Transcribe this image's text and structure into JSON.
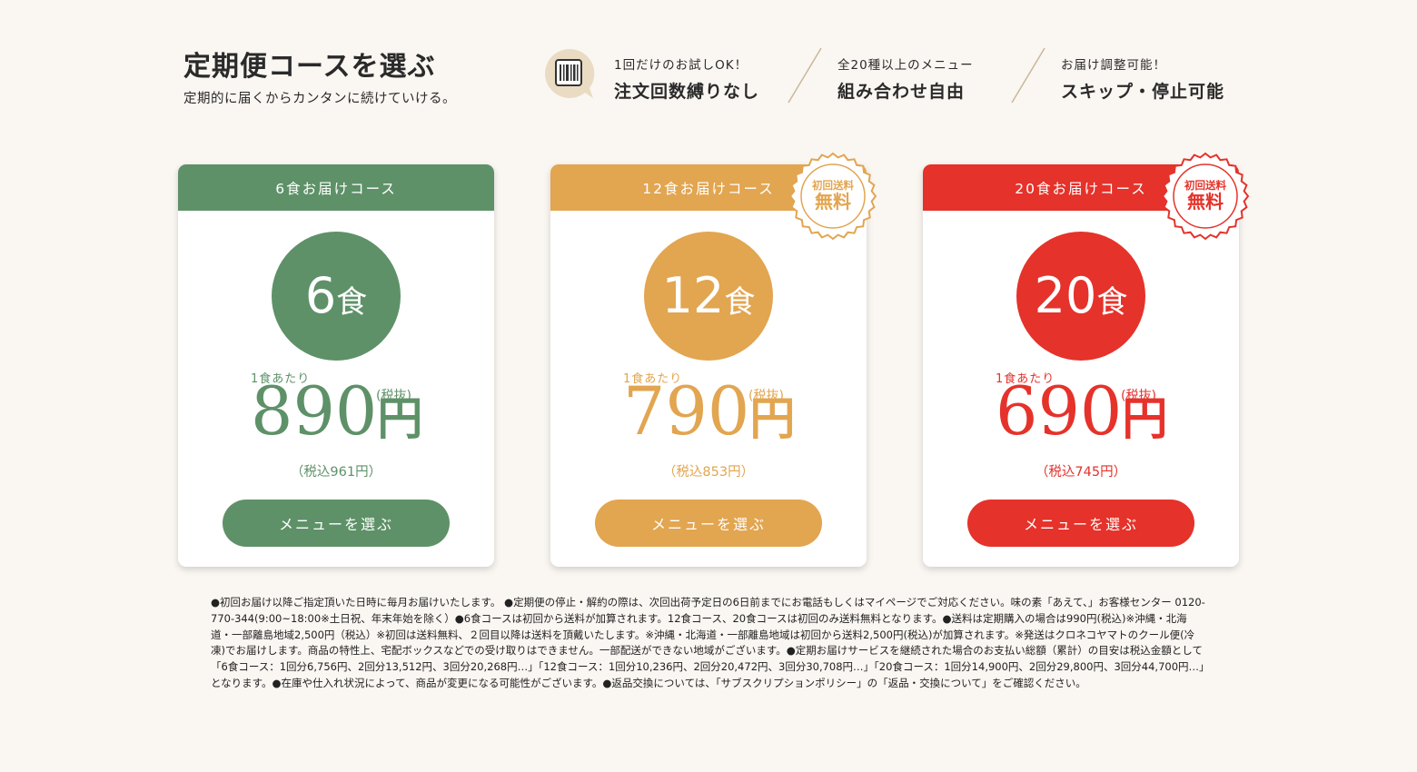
{
  "header": {
    "title": "定期便コースを選ぶ",
    "subtitle": "定期的に届くからカンタンに続けていける。"
  },
  "features": [
    {
      "small": "1回だけのお試しOK！",
      "big": "注文回数縛りなし"
    },
    {
      "small": "全20種以上のメニュー",
      "big": "組み合わせ自由"
    },
    {
      "small": "お届け調整可能！",
      "big": "スキップ・停止可能"
    }
  ],
  "courses": [
    {
      "header": "6食お届けコース",
      "count": "6",
      "unit": "食",
      "per_label": "1食あたり",
      "price": "890",
      "yen": "円",
      "tax_excluded": "(税抜)",
      "tax_included": "（税込961円）",
      "button": "メニューを選ぶ",
      "color": "#5e9168",
      "badge": null
    },
    {
      "header": "12食お届けコース",
      "count": "12",
      "unit": "食",
      "per_label": "1食あたり",
      "price": "790",
      "yen": "円",
      "tax_excluded": "(税抜)",
      "tax_included": "（税込853円）",
      "button": "メニューを選ぶ",
      "color": "#e2a550",
      "badge": {
        "small": "初回送料",
        "big": "無料"
      }
    },
    {
      "header": "20食お届けコース",
      "count": "20",
      "unit": "食",
      "per_label": "1食あたり",
      "price": "690",
      "yen": "円",
      "tax_excluded": "(税抜)",
      "tax_included": "（税込745円）",
      "button": "メニューを選ぶ",
      "color": "#e5322a",
      "badge": {
        "small": "初回送料",
        "big": "無料"
      }
    }
  ],
  "notes": "●初回お届け以降ご指定頂いた日時に毎月お届けいたします。 ●定期便の停止・解約の際は、次回出荷予定日の6日前までにお電話もしくはマイページでご対応ください。味の素「あえて、」お客様センター 0120-770-344(9:00~18:00※土日祝、年末年始を除く）●6食コースは初回から送料が加算されます。12食コース、20食コースは初回のみ送料無料となります。●送料は定期購入の場合は990円(税込)※沖縄・北海道・一部離島地域2,500円（税込）※初回は送料無料、２回目以降は送料を頂戴いたします。※沖縄・北海道・一部離島地域は初回から送料2,500円(税込)が加算されます。※発送はクロネコヤマトのクール便(冷凍)でお届けします。商品の特性上、宅配ボックスなどでの受け取りはできません。一部配送ができない地域がございます。●定期お届けサービスを継続された場合のお支払い総額（累計）の目安は税込金額として「6食コース：1回分6,756円、2回分13,512円、3回分20,268円…」「12食コース：1回分10,236円、2回分20,472円、3回分30,708円…」「20食コース：1回分14,900円、2回分29,800円、3回分44,700円…」となります。●在庫や仕入れ状況によって、商品が変更になる可能性がございます。●返品交換については、「サブスクリプションポリシー」の「返品・交換について」をご確認ください。"
}
